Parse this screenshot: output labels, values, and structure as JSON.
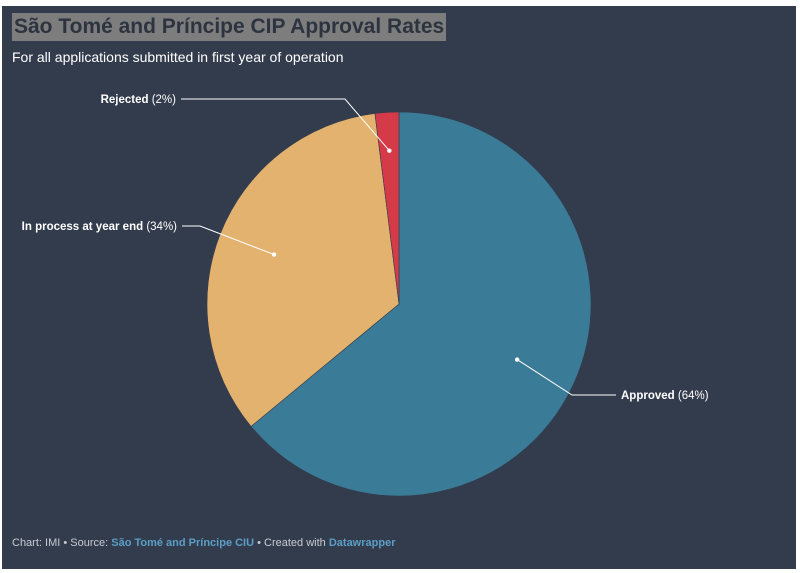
{
  "header": {
    "title": "São Tomé and Príncipe CIP Approval Rates",
    "subtitle": "For all applications submitted in first year of operation"
  },
  "footer": {
    "chart_prefix": "Chart: IMI",
    "sep1": " • Source: ",
    "source_link": "São Tomé and Príncipe CIU",
    "sep2": " • Created with ",
    "tool_link": "Datawrapper"
  },
  "colors": {
    "background": "#333c4d",
    "approved": "#3a7c97",
    "in_process": "#e2b26e",
    "rejected": "#d53a48",
    "label_text": "#ffffff",
    "link": "#5b9ec6"
  },
  "chart_data": {
    "type": "pie",
    "title": "São Tomé and Príncipe CIP Approval Rates",
    "subtitle": "For all applications submitted in first year of operation",
    "slices": [
      {
        "key": "approved",
        "label": "Approved",
        "pct_text": "(64%)",
        "value": 64
      },
      {
        "key": "in_process",
        "label": "In process at year end",
        "pct_text": "(34%)",
        "value": 34
      },
      {
        "key": "rejected",
        "label": "Rejected",
        "pct_text": "(2%)",
        "value": 2
      }
    ],
    "start": "12 o'clock, clockwise",
    "legend": "none (callout labels)"
  }
}
